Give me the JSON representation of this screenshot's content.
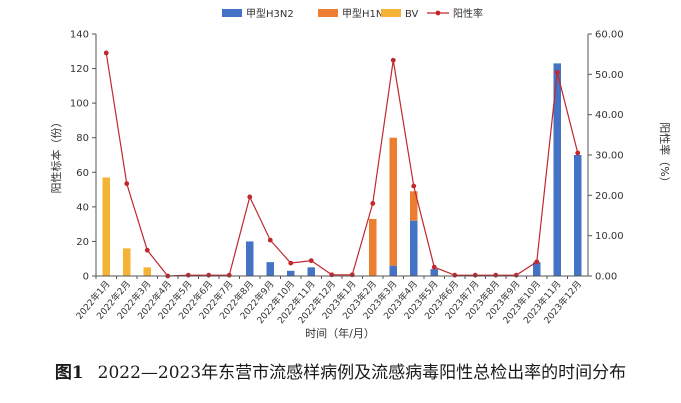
{
  "chart_data": {
    "type": "bar",
    "categories": [
      "2022年1月",
      "2022年2月",
      "2022年3月",
      "2022年4月",
      "2022年5月",
      "2022年6月",
      "2022年7月",
      "2022年8月",
      "2022年9月",
      "2022年10月",
      "2022年11月",
      "2022年12月",
      "2023年1月",
      "2023年2月",
      "2023年3月",
      "2023年4月",
      "2023年5月",
      "2023年6月",
      "2023年7月",
      "2023年8月",
      "2023年9月",
      "2023年10月",
      "2023年11月",
      "2023年12月"
    ],
    "series": [
      {
        "name": "甲型H3N2",
        "kind": "bar",
        "axis": "left",
        "color": "#4472c4",
        "values": [
          0,
          0,
          0,
          0,
          0,
          0,
          0,
          20,
          8,
          3,
          5,
          0,
          0,
          0,
          6,
          32,
          4,
          0,
          0,
          0,
          0,
          8,
          123,
          70
        ]
      },
      {
        "name": "甲型H1N1",
        "kind": "bar",
        "axis": "left",
        "color": "#ed7d31",
        "values": [
          0,
          0,
          0,
          0,
          0,
          0,
          0,
          0,
          0,
          0,
          0,
          0,
          0,
          33,
          74,
          17,
          0,
          0,
          0,
          0,
          0,
          0,
          0,
          0
        ]
      },
      {
        "name": "BV",
        "kind": "bar",
        "axis": "left",
        "color": "#f5b335",
        "values": [
          57,
          16,
          5,
          0,
          0,
          0,
          0,
          0,
          0,
          0,
          0,
          0,
          0,
          0,
          0,
          0,
          0,
          0,
          0,
          0,
          0,
          0,
          0,
          0
        ]
      },
      {
        "name": "阳性率",
        "kind": "line",
        "axis": "right",
        "color": "#c0282d",
        "values": [
          55.3,
          22.9,
          6.4,
          0.0,
          0.2,
          0.2,
          0.2,
          19.6,
          8.9,
          3.2,
          3.8,
          0.3,
          0.3,
          18.0,
          53.5,
          22.3,
          2.2,
          0.2,
          0.2,
          0.2,
          0.2,
          3.5,
          50.5,
          30.5
        ]
      }
    ],
    "ylabel": "阳性标本（份）",
    "y2label": "阳性率（%）",
    "xlabel": "时间（年/月）",
    "ylim": [
      0,
      140
    ],
    "y2lim": [
      0,
      60
    ],
    "yticks": [
      "0",
      "20",
      "40",
      "60",
      "80",
      "100",
      "120",
      "140"
    ],
    "y2ticks": [
      "0.00",
      "10.00",
      "20.00",
      "30.00",
      "40.00",
      "50.00",
      "60.00"
    ],
    "grid": false,
    "legend_position": "top"
  },
  "caption": {
    "figure_label": "图1",
    "text": "2022—2023年东营市流感样病例及流感病毒阳性总检出率的时间分布"
  }
}
